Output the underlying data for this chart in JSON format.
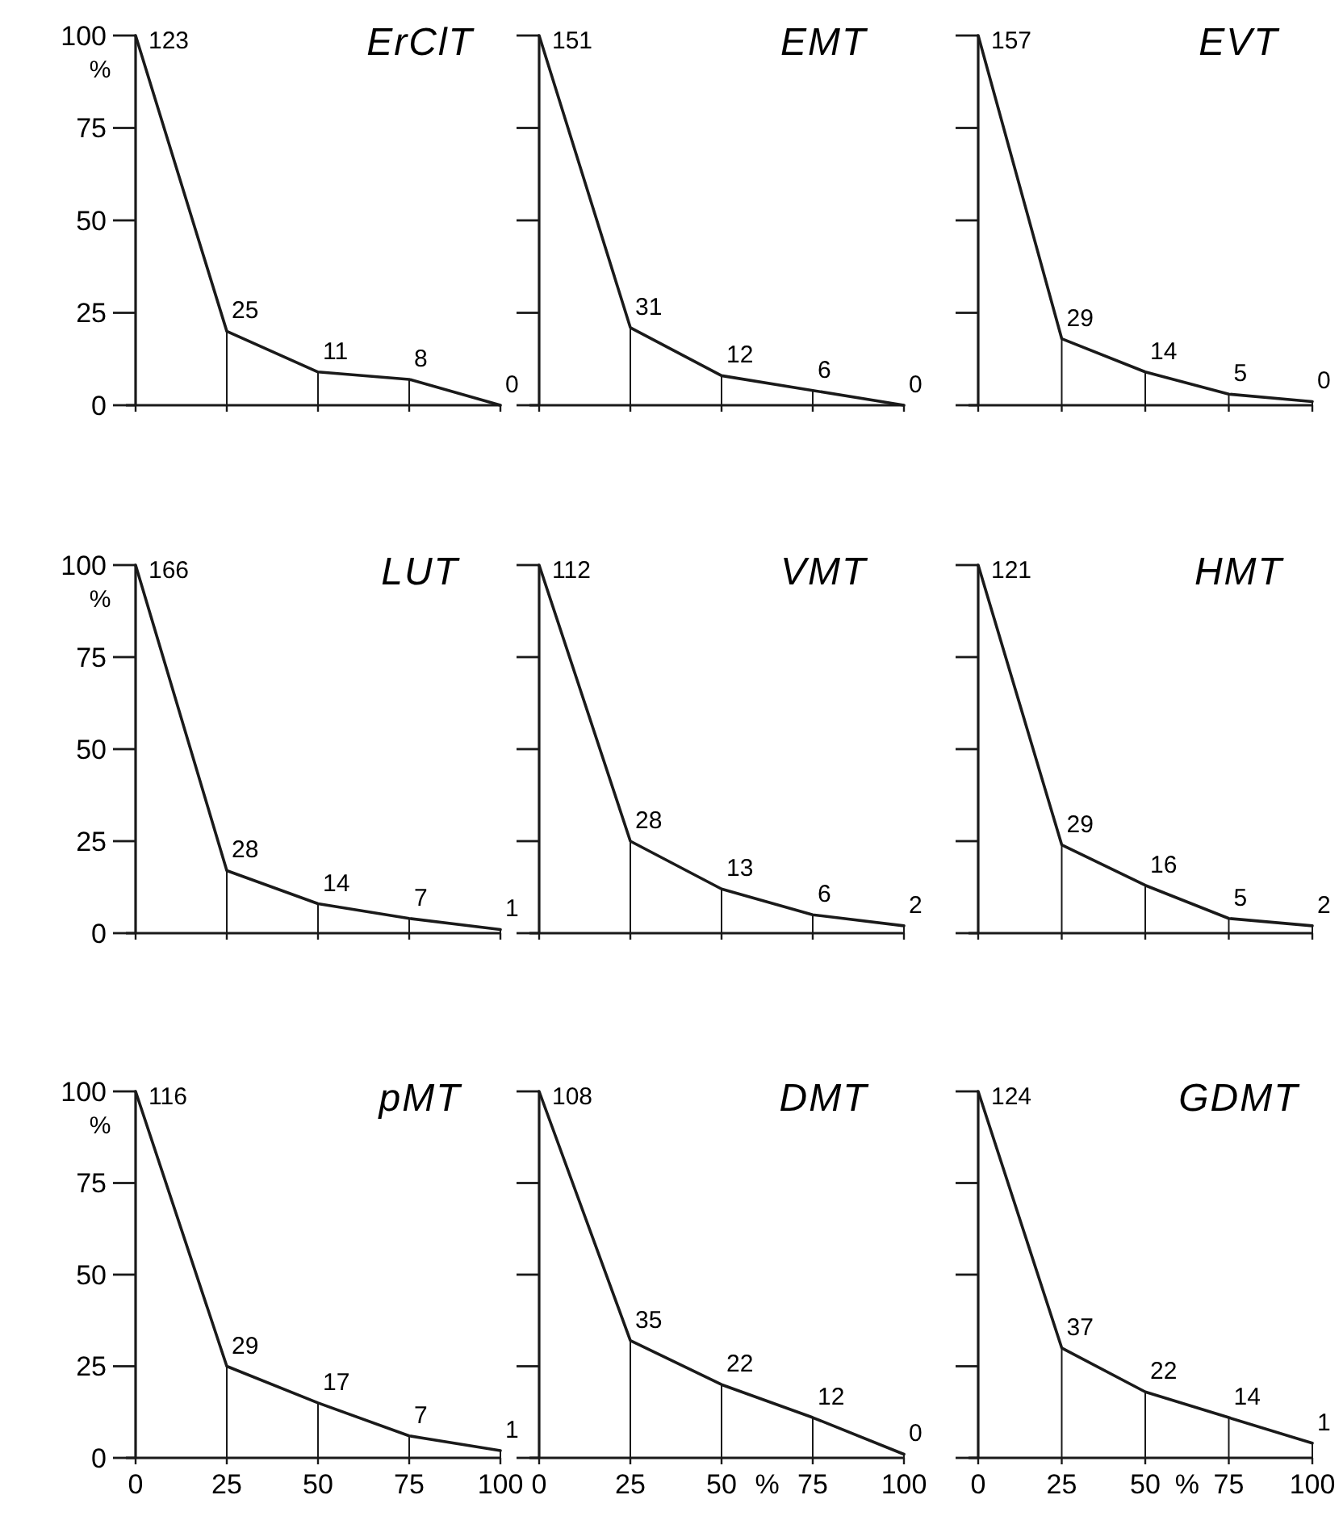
{
  "chart_data": [
    {
      "type": "line",
      "title": "ErClT",
      "ylabel": "%",
      "x": [
        0,
        25,
        50,
        75,
        100
      ],
      "values": [
        100,
        20,
        9,
        7,
        0
      ],
      "annotations": [
        {
          "text": "123",
          "x": 0,
          "y": 100
        },
        {
          "text": "25",
          "x": 25,
          "y": 20
        },
        {
          "text": "11",
          "x": 50,
          "y": 9
        },
        {
          "text": "8",
          "x": 75,
          "y": 7
        },
        {
          "text": "0",
          "x": 100,
          "y": 0
        }
      ],
      "xlim": [
        0,
        100
      ],
      "ylim": [
        0,
        100
      ],
      "xticks": [
        0,
        25,
        50,
        75,
        100
      ],
      "yticks": [
        0,
        25,
        50,
        75,
        100
      ],
      "tick_labels": "y"
    },
    {
      "type": "line",
      "title": "EMT",
      "x": [
        0,
        25,
        50,
        75,
        100
      ],
      "values": [
        100,
        21,
        8,
        4,
        0
      ],
      "annotations": [
        {
          "text": "151",
          "x": 0,
          "y": 100
        },
        {
          "text": "31",
          "x": 25,
          "y": 21
        },
        {
          "text": "12",
          "x": 50,
          "y": 8
        },
        {
          "text": "6",
          "x": 75,
          "y": 4
        },
        {
          "text": "0",
          "x": 100,
          "y": 0
        }
      ],
      "xlim": [
        0,
        100
      ],
      "ylim": [
        0,
        100
      ],
      "xticks": [
        0,
        25,
        50,
        75,
        100
      ],
      "yticks": [
        0,
        25,
        50,
        75,
        100
      ],
      "tick_labels": false
    },
    {
      "type": "line",
      "title": "EVT",
      "x": [
        0,
        25,
        50,
        75,
        100
      ],
      "values": [
        100,
        18,
        9,
        3,
        1
      ],
      "annotations": [
        {
          "text": "157",
          "x": 0,
          "y": 100
        },
        {
          "text": "29",
          "x": 25,
          "y": 18
        },
        {
          "text": "14",
          "x": 50,
          "y": 9
        },
        {
          "text": "5",
          "x": 75,
          "y": 3
        },
        {
          "text": "0",
          "x": 100,
          "y": 1
        }
      ],
      "xlim": [
        0,
        100
      ],
      "ylim": [
        0,
        100
      ],
      "xticks": [
        0,
        25,
        50,
        75,
        100
      ],
      "yticks": [
        0,
        25,
        50,
        75,
        100
      ],
      "tick_labels": false
    },
    {
      "type": "line",
      "title": "LUT",
      "ylabel": "%",
      "x": [
        0,
        25,
        50,
        75,
        100
      ],
      "values": [
        100,
        17,
        8,
        4,
        1
      ],
      "annotations": [
        {
          "text": "166",
          "x": 0,
          "y": 100
        },
        {
          "text": "28",
          "x": 25,
          "y": 17
        },
        {
          "text": "14",
          "x": 50,
          "y": 8
        },
        {
          "text": "7",
          "x": 75,
          "y": 4
        },
        {
          "text": "1",
          "x": 100,
          "y": 1
        }
      ],
      "xlim": [
        0,
        100
      ],
      "ylim": [
        0,
        100
      ],
      "xticks": [
        0,
        25,
        50,
        75,
        100
      ],
      "yticks": [
        0,
        25,
        50,
        75,
        100
      ],
      "tick_labels": "y"
    },
    {
      "type": "line",
      "title": "VMT",
      "x": [
        0,
        25,
        50,
        75,
        100
      ],
      "values": [
        100,
        25,
        12,
        5,
        2
      ],
      "annotations": [
        {
          "text": "112",
          "x": 0,
          "y": 100
        },
        {
          "text": "28",
          "x": 25,
          "y": 25
        },
        {
          "text": "13",
          "x": 50,
          "y": 12
        },
        {
          "text": "6",
          "x": 75,
          "y": 5
        },
        {
          "text": "2",
          "x": 100,
          "y": 2
        }
      ],
      "xlim": [
        0,
        100
      ],
      "ylim": [
        0,
        100
      ],
      "xticks": [
        0,
        25,
        50,
        75,
        100
      ],
      "yticks": [
        0,
        25,
        50,
        75,
        100
      ],
      "tick_labels": false
    },
    {
      "type": "line",
      "title": "HMT",
      "x": [
        0,
        25,
        50,
        75,
        100
      ],
      "values": [
        100,
        24,
        13,
        4,
        2
      ],
      "annotations": [
        {
          "text": "121",
          "x": 0,
          "y": 100
        },
        {
          "text": "29",
          "x": 25,
          "y": 24
        },
        {
          "text": "16",
          "x": 50,
          "y": 13
        },
        {
          "text": "5",
          "x": 75,
          "y": 4
        },
        {
          "text": "2",
          "x": 100,
          "y": 2
        }
      ],
      "xlim": [
        0,
        100
      ],
      "ylim": [
        0,
        100
      ],
      "xticks": [
        0,
        25,
        50,
        75,
        100
      ],
      "yticks": [
        0,
        25,
        50,
        75,
        100
      ],
      "tick_labels": false
    },
    {
      "type": "line",
      "title": "pMT",
      "ylabel": "%",
      "x": [
        0,
        25,
        50,
        75,
        100
      ],
      "values": [
        100,
        25,
        15,
        6,
        2
      ],
      "annotations": [
        {
          "text": "116",
          "x": 0,
          "y": 100
        },
        {
          "text": "29",
          "x": 25,
          "y": 25
        },
        {
          "text": "17",
          "x": 50,
          "y": 15
        },
        {
          "text": "7",
          "x": 75,
          "y": 6
        },
        {
          "text": "1",
          "x": 100,
          "y": 2
        }
      ],
      "xlim": [
        0,
        100
      ],
      "ylim": [
        0,
        100
      ],
      "xticks": [
        0,
        25,
        50,
        75,
        100
      ],
      "yticks": [
        0,
        25,
        50,
        75,
        100
      ]
    },
    {
      "type": "line",
      "title": "DMT",
      "xlabel": "%",
      "x": [
        0,
        25,
        50,
        75,
        100
      ],
      "values": [
        100,
        32,
        20,
        11,
        1
      ],
      "annotations": [
        {
          "text": "108",
          "x": 0,
          "y": 100
        },
        {
          "text": "35",
          "x": 25,
          "y": 32
        },
        {
          "text": "22",
          "x": 50,
          "y": 20
        },
        {
          "text": "12",
          "x": 75,
          "y": 11
        },
        {
          "text": "0",
          "x": 100,
          "y": 1
        }
      ],
      "xlim": [
        0,
        100
      ],
      "ylim": [
        0,
        100
      ],
      "xticks": [
        0,
        25,
        50,
        75,
        100
      ],
      "yticks": [
        0,
        25,
        50,
        75,
        100
      ],
      "tick_labels": "x"
    },
    {
      "type": "line",
      "title": "GDMT",
      "xlabel": "%",
      "x": [
        0,
        25,
        50,
        75,
        100
      ],
      "values": [
        100,
        30,
        18,
        11,
        4
      ],
      "annotations": [
        {
          "text": "124",
          "x": 0,
          "y": 100
        },
        {
          "text": "37",
          "x": 25,
          "y": 30
        },
        {
          "text": "22",
          "x": 50,
          "y": 18
        },
        {
          "text": "14",
          "x": 75,
          "y": 11
        },
        {
          "text": "1",
          "x": 100,
          "y": 4
        }
      ],
      "xlim": [
        0,
        100
      ],
      "ylim": [
        0,
        100
      ],
      "xticks": [
        0,
        25,
        50,
        75,
        100
      ],
      "yticks": [
        0,
        25,
        50,
        75,
        100
      ],
      "tick_labels": "x"
    }
  ]
}
